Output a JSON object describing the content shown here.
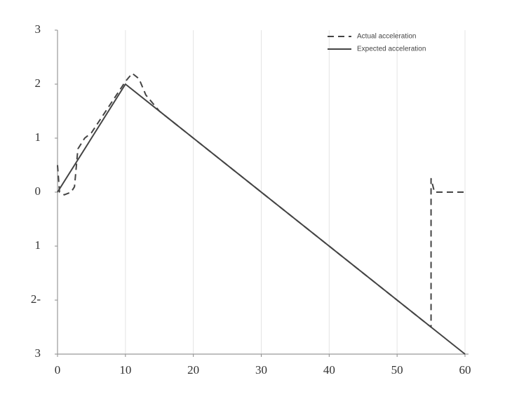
{
  "chart_data": {
    "type": "line",
    "series": [
      {
        "name": "Actual acceleration",
        "color": "#444444",
        "dash": true,
        "x": [
          0,
          0.3,
          1,
          2,
          2.5,
          3,
          4,
          5,
          10,
          11,
          12,
          13,
          15,
          55,
          55,
          55.5,
          60
        ],
        "values": [
          0.5,
          0,
          -0.05,
          0,
          0.1,
          0.8,
          1,
          1.1,
          2.05,
          2.2,
          2.1,
          1.8,
          1.5,
          -2.5,
          0.25,
          0,
          0
        ]
      },
      {
        "name": "Expected acceleration",
        "color": "#444444",
        "dash": false,
        "x": [
          0,
          10,
          60
        ],
        "values": [
          0,
          2,
          -3
        ]
      }
    ],
    "xlim": [
      0,
      60
    ],
    "xticks": [
      0,
      10,
      20,
      30,
      40,
      50,
      60
    ],
    "ylim": [
      -3,
      3
    ],
    "yticks": [
      {
        "value": -3,
        "label": "3"
      },
      {
        "value": -2,
        "label": "2-"
      },
      {
        "value": -1,
        "label": "1"
      },
      0,
      1,
      2,
      3
    ],
    "grid": "x",
    "legend": "upper right"
  }
}
